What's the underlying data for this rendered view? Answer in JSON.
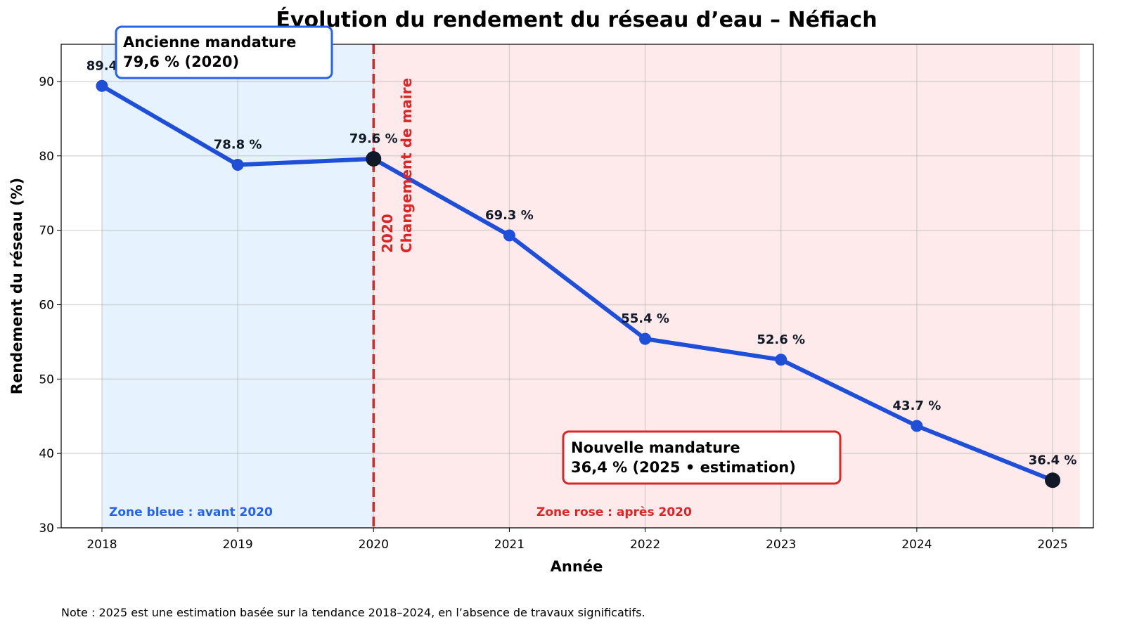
{
  "chart_data": {
    "type": "line",
    "title": "Évolution du rendement du réseau d’eau – Néfiach",
    "xlabel": "Année",
    "ylabel": "Rendement du réseau (%)",
    "x": [
      2018,
      2019,
      2020,
      2021,
      2022,
      2023,
      2024,
      2025
    ],
    "values": [
      89.4,
      78.8,
      79.6,
      69.3,
      55.4,
      52.6,
      43.7,
      36.4
    ],
    "point_labels": [
      "89.4",
      "78.8 %",
      "79.6 %",
      "69.3 %",
      "55.4 %",
      "52.6 %",
      "43.7 %",
      "36.4 %"
    ],
    "highlighted_years": [
      2020,
      2025
    ],
    "xlim": [
      2017.7,
      2025.3
    ],
    "ylim": [
      30,
      95
    ],
    "xticks": [
      "2018",
      "2019",
      "2020",
      "2021",
      "2022",
      "2023",
      "2024",
      "2025"
    ],
    "yticks": [
      "30",
      "40",
      "50",
      "60",
      "70",
      "80",
      "90"
    ],
    "grid": true,
    "zones": [
      {
        "from": 2018,
        "to": 2020,
        "color": "#e6f2fe",
        "label": "Zone bleue : avant 2020",
        "label_color": "#2563eb"
      },
      {
        "from": 2020,
        "to": 2025.2,
        "color": "#feeaea",
        "label": "Zone rose : après 2020",
        "label_color": "#dc2626"
      }
    ],
    "vline": {
      "x": 2020,
      "color": "#dc2626",
      "label_line1": "2020",
      "label_line2": "Changement de maire"
    },
    "annotations": [
      {
        "line1": "Ancienne mandature",
        "line2": "79,6 % (2020)",
        "color": "#2563eb"
      },
      {
        "line1": "Nouvelle mandature",
        "line2": "36,4 % (2025 • estimation)",
        "color": "#dc2626"
      }
    ],
    "line_color": "#1f4fd8",
    "highlight_color": "#111827"
  },
  "note": "Note : 2025 est une estimation basée sur la tendance 2018–2024, en l’absence de travaux significatifs."
}
